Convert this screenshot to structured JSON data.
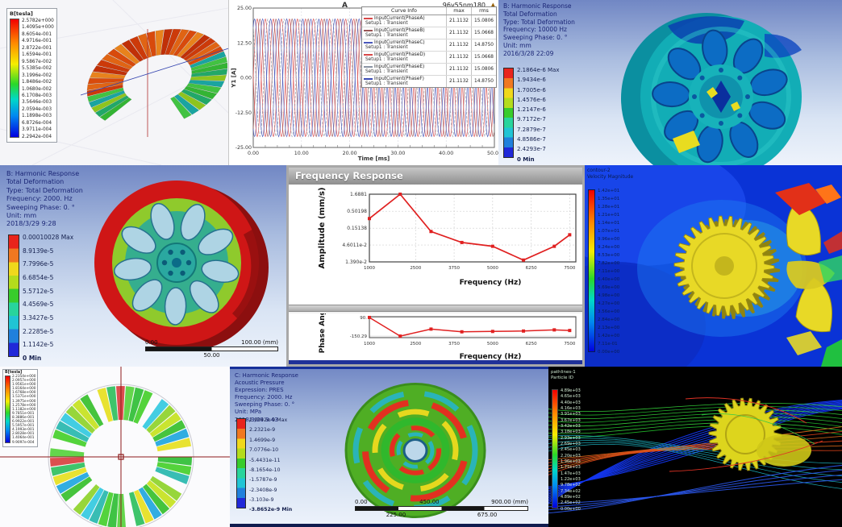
{
  "colors": {
    "ansys_text": "#1b2676",
    "curve_red": "#d84848",
    "curve_blue": "#4a58bc",
    "cfd_background": "#0a33d6",
    "model_yellow": "#e8d926",
    "crosshair_red": "#8d1a1a"
  },
  "icons": {
    "legend_pin": "▲"
  },
  "panels": {
    "maxwell_toroid": {
      "legend_title": "B[tesla]",
      "values": [
        "2.5782e+000",
        "1.4095e+000",
        "8.6054e-001",
        "4.9716e-001",
        "2.8722e-001",
        "1.6594e-001",
        "9.5867e-002",
        "5.5385e-002",
        "3.1996e-002",
        "1.8486e-002",
        "1.0680e-002",
        "6.1708e-003",
        "3.5646e-003",
        "2.0594e-003",
        "1.1898e-003",
        "6.8726e-004",
        "3.9711e-004",
        "2.2942e-004"
      ]
    },
    "current_plot": {
      "corner_label": "A",
      "title": "96v55nm180",
      "legend_headers": [
        "Curve Info",
        "max",
        "rms"
      ]
    },
    "harmonic_b_10000": {
      "info": [
        "B: Harmonic Response",
        "Total Deformation",
        "Type: Total Deformation",
        "Frequency: 10000 Hz",
        "Sweeping Phase: 0. °",
        "Unit: mm",
        "2016/3/28 22:09"
      ],
      "colorbar": [
        "2.1864e-6 Max",
        "1.9434e-6",
        "1.7005e-6",
        "1.4576e-6",
        "1.2147e-6",
        "9.7172e-7",
        "7.2879e-7",
        "4.8586e-7",
        "2.4293e-7",
        "0 Min"
      ]
    },
    "harmonic_b_2000": {
      "info": [
        "B: Harmonic Response",
        "Total Deformation",
        "Type: Total Deformation",
        "Frequency: 2000. Hz",
        "Sweeping Phase: 0. °",
        "Unit: mm",
        "2018/3/29 9:28"
      ],
      "colorbar": [
        "0.00010028 Max",
        "8.9139e-5",
        "7.7996e-5",
        "6.6854e-5",
        "5.5712e-5",
        "4.4569e-5",
        "3.3427e-5",
        "2.2285e-5",
        "1.1142e-5",
        "0 Min"
      ],
      "scalebar": {
        "start": "0.00",
        "end": "100.00 (mm)",
        "mid": "50.00"
      }
    },
    "freq_response": {
      "window_title": "Frequency Response"
    },
    "cfd_velocity": {
      "title": [
        "contour-2",
        "Velocity Magnitude"
      ],
      "values": [
        "1.42e+01",
        "1.35e+01",
        "1.28e+01",
        "1.21e+01",
        "1.14e+01",
        "1.07e+01",
        "9.96e+00",
        "9.24e+00",
        "8.53e+00",
        "7.82e+00",
        "7.11e+00",
        "6.40e+00",
        "5.69e+00",
        "4.98e+00",
        "4.27e+00",
        "3.56e+00",
        "2.84e+00",
        "2.13e+00",
        "1.42e+00",
        "7.11e-01",
        "0.00e+00"
      ]
    },
    "maxwell_flux": {
      "legend_title": "B[tesla]",
      "values": [
        "2.2354e+000",
        "2.0957e+000",
        "1.9561e+000",
        "1.8164e+000",
        "1.6768e+000",
        "1.5371e+000",
        "1.3975e+000",
        "1.2578e+000",
        "1.1182e+000",
        "9.7851e-001",
        "8.3886e-001",
        "6.9922e-001",
        "5.5957e-001",
        "4.1993e-001",
        "2.8028e-001",
        "1.4064e-001",
        "9.9097e-004"
      ]
    },
    "acoustic": {
      "info": [
        "C: Harmonic Response",
        "Acoustic Pressure",
        "Expression: PRES",
        "Frequency: 2000. Hz",
        "Sweeping Phase: 0. °",
        "Unit: MPa",
        "2018/3/29 9:43"
      ],
      "colorbar": [
        "2.9942e-9 Max",
        "2.2321e-9",
        "1.4699e-9",
        "7.0776e-10",
        "-5.4431e-11",
        "-8.1654e-10",
        "-1.5787e-9",
        "-2.3408e-9",
        "-3.103e-9",
        "-3.8652e-9 Min"
      ],
      "scalebar": {
        "start": "0.00",
        "mid": "450.00",
        "end": "900.00 (mm)",
        "q1": "225.00",
        "q3": "675.00"
      }
    },
    "pathlines": {
      "title": [
        "pathlines-1",
        "Particle ID"
      ],
      "values": [
        "4.89e+03",
        "4.65e+03",
        "4.40e+03",
        "4.16e+03",
        "3.91e+03",
        "3.67e+03",
        "3.42e+03",
        "3.18e+03",
        "2.93e+03",
        "2.69e+03",
        "2.45e+03",
        "2.20e+03",
        "1.96e+03",
        "1.71e+03",
        "1.47e+03",
        "1.22e+03",
        "9.78e+02",
        "7.34e+02",
        "4.89e+02",
        "2.45e+02",
        "0.00e+00"
      ]
    }
  },
  "chart_data": [
    {
      "type": "line",
      "panel": "phase-current-waveforms",
      "title": "96v55nm180",
      "xlabel": "Time [ms]",
      "ylabel": "Y1 [A]",
      "xlim": [
        0,
        50
      ],
      "ylim": [
        -25,
        25
      ],
      "xticks": [
        "0.00",
        "10.00",
        "20.00",
        "30.00",
        "40.00",
        "50.00"
      ],
      "yticks": [
        "25.00",
        "12.50",
        "0.00",
        "-12.50",
        "-25.00"
      ],
      "grid": true,
      "legend_position": "top-right",
      "signal": {
        "amplitude": 21.1132,
        "period_ms": 3.3333,
        "phases_deg": [
          0,
          -60,
          -120,
          -180,
          -240,
          -300
        ]
      },
      "series": [
        {
          "name": "InputCurrent(PhaseA)",
          "setup": "Setup1 : Transient",
          "max": "21.1132",
          "rms": "15.0806",
          "color": "#d84848"
        },
        {
          "name": "InputCurrent(PhaseB)",
          "setup": "Setup1 : Transient",
          "max": "21.1132",
          "rms": "15.0668",
          "color": "#9a5656"
        },
        {
          "name": "InputCurrent(PhaseC)",
          "setup": "Setup1 : Transient",
          "max": "21.1132",
          "rms": "14.8750",
          "color": "#4a58bc"
        },
        {
          "name": "InputCurrent(PhaseD)",
          "setup": "Setup1 : Transient",
          "max": "21.1132",
          "rms": "15.0668",
          "color": "#d84848"
        },
        {
          "name": "InputCurrent(PhaseE)",
          "setup": "Setup1 : Transient",
          "max": "21.1132",
          "rms": "15.0806",
          "color": "#8a94a4",
          "dash": true
        },
        {
          "name": "InputCurrent(PhaseF)",
          "setup": "Setup1 : Transient",
          "max": "21.1132",
          "rms": "14.8750",
          "color": "#3a4ab4"
        }
      ]
    },
    {
      "type": "line",
      "panel": "frequency-response-amplitude",
      "ylabel": "Amplitude (mm/s)",
      "xlabel": "Frequency (Hz)",
      "yscale": "log",
      "yticks": [
        "1.6881",
        "0.50198",
        "0.15138",
        "4.6011e-2",
        "1.390e-2"
      ],
      "xticks": [
        "1000",
        "2500",
        "3750",
        "5000",
        "6250",
        "7500"
      ],
      "xlim": [
        1000,
        7700
      ],
      "x": [
        1000,
        2000,
        3000,
        4000,
        5000,
        6000,
        7000,
        7500
      ],
      "y": [
        0.3,
        1.6881,
        0.12,
        0.055,
        0.042,
        0.0158,
        0.042,
        0.095
      ],
      "grid": true,
      "color": "#e02020"
    },
    {
      "type": "line",
      "panel": "frequency-response-phase",
      "ylabel": "Phase Angle",
      "xlabel": "Frequency (Hz)",
      "yticks": [
        "90.",
        "-150.29"
      ],
      "xticks": [
        "1000",
        "2500",
        "3750",
        "5000",
        "6250",
        "7500"
      ],
      "xlim": [
        1000,
        7700
      ],
      "ylim": [
        -170,
        100
      ],
      "x": [
        1000,
        2000,
        3000,
        4000,
        5000,
        6000,
        7000,
        7500
      ],
      "y": [
        90,
        -150.29,
        -60,
        -95,
        -90,
        -85,
        -70,
        -78
      ],
      "color": "#e02020"
    }
  ]
}
